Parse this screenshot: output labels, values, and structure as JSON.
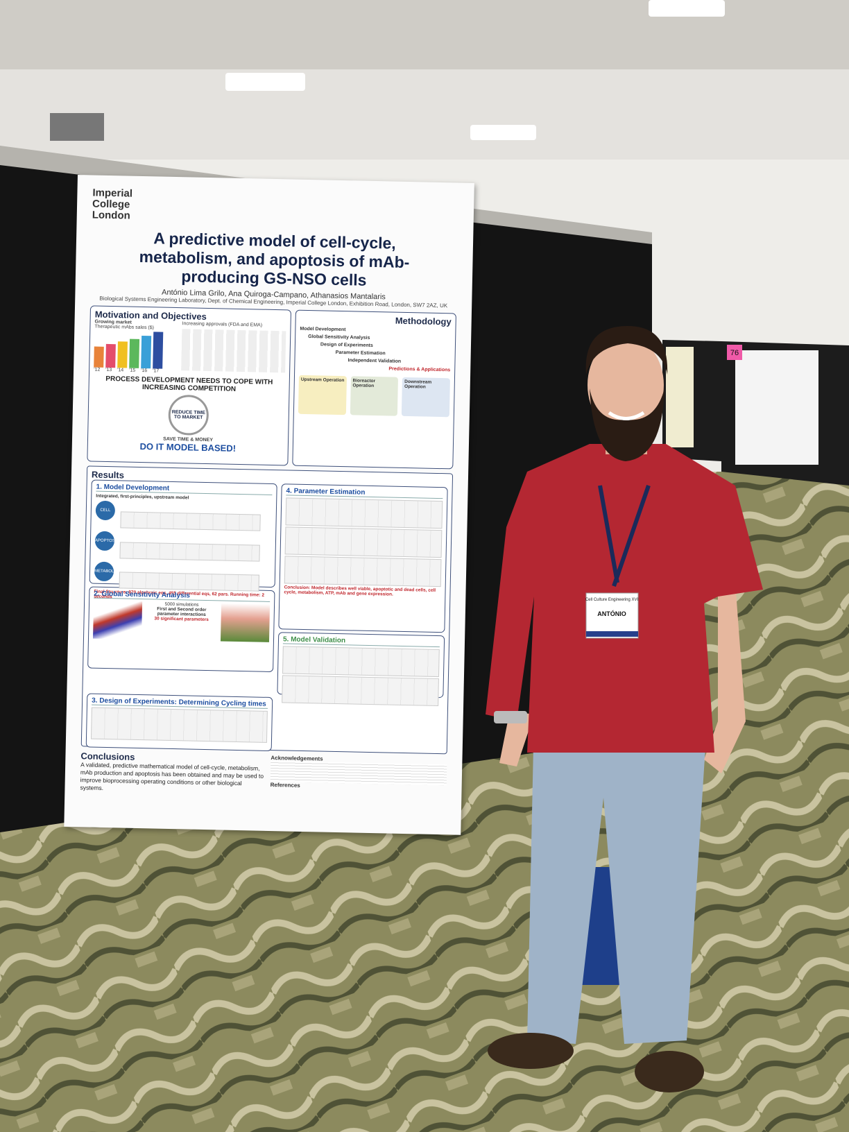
{
  "poster": {
    "institution": "Imperial College London",
    "title": "A predictive model of cell-cycle, metabolism, and apoptosis of mAb-producing GS-NSO cells",
    "authors": "António Lima Grilo, Ana Quiroga-Campano, Athanasios Mantalaris",
    "affiliation": "Biological Systems Engineering Laboratory, Dept. of Chemical Engineering, Imperial College London, Exhibition Road, London, SW7 2AZ, UK",
    "motivation": {
      "heading": "Motivation and Objectives",
      "market": "Growing market",
      "market_sub": "Therapeutic mAbs sales ($)",
      "years": [
        "'12",
        "'13",
        "'14",
        "'15",
        "'16",
        "'17"
      ],
      "approvals": "Increasing approvals (FDA and EMA)",
      "challenge": "PROCESS DEVELOPMENT NEEDS TO COPE WITH INCREASING COMPETITION",
      "reduce": "REDUCE TIME TO MARKET",
      "save": "SAVE TIME & MONEY",
      "slogan": "DO IT MODEL BASED!"
    },
    "methodology": {
      "heading": "Methodology",
      "steps": [
        "Model Development",
        "Global Sensitivity Analysis",
        "Design of Experiments",
        "Parameter Estimation",
        "Independent Validation",
        "Predictions & Applications"
      ],
      "ops": [
        "Upstream Operation",
        "Bioreactor Operation",
        "Downstream Operation"
      ]
    },
    "results": {
      "heading": "Results",
      "model": {
        "heading": "1. Model Development",
        "intro": "Integrated, first-principles, upstream model",
        "modules": [
          "CELL CYCLE",
          "APOPTOSIS",
          "METABOLISM"
        ],
        "final": "Final Structure: 970 algebraic eqs, 455 differential eqs, 62 pars. Running time: 2 seconds"
      },
      "gsa": {
        "heading": "2. Global Sensitivity Analysis",
        "sims": "5000 simulations",
        "interactions": "First and Second order parameter interactions",
        "significant": "30 significant parameters"
      },
      "doe": {
        "heading": "3. Design of Experiments: Determining Cycling times"
      },
      "estimation": {
        "heading": "4. Parameter Estimation",
        "conclusion": "Conclusion: Model describes well viable, apoptotic and dead cells, cell cycle, metabolism, ATP, mAb and gene expression."
      },
      "validation": {
        "heading": "5. Model Validation"
      }
    },
    "conclusions": {
      "heading": "Conclusions",
      "text": "A validated, predictive mathematical model of cell-cycle, metabolism, mAb production and apoptosis has been obtained and may be used to improve bioprocessing operating conditions or other biological systems."
    },
    "acknowledgements": "Acknowledgements",
    "references": "References"
  },
  "badge": {
    "event": "Cell Culture Engineering XVI",
    "name": "ANTÓNIO"
  },
  "board_number": "76"
}
